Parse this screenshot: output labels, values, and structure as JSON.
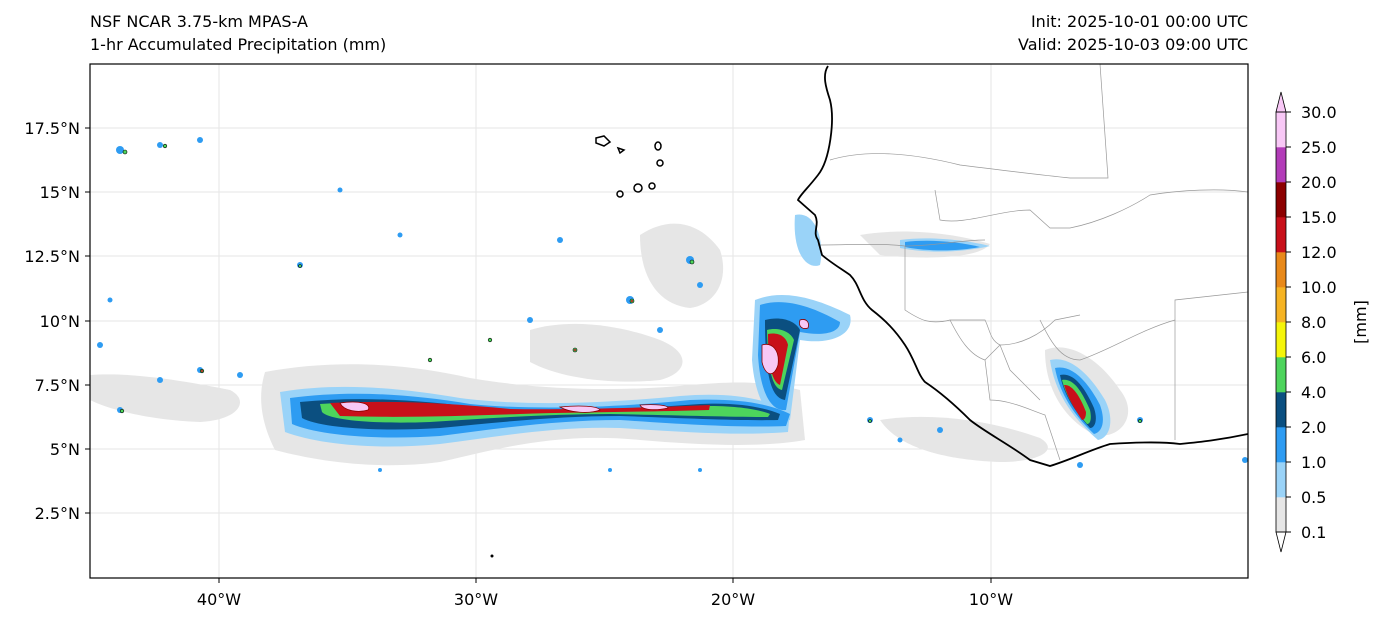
{
  "header": {
    "model": "NSF NCAR 3.75-km MPAS-A",
    "field": "1-hr Accumulated Precipitation (mm)",
    "init": "Init: 2025-10-01 00:00 UTC",
    "valid": "Valid: 2025-10-03 09:00 UTC"
  },
  "axes": {
    "lat_ticks": [
      "17.5°N",
      "15°N",
      "12.5°N",
      "10°N",
      "7.5°N",
      "5°N",
      "2.5°N"
    ],
    "lon_ticks": [
      "40°W",
      "30°W",
      "20°W",
      "10°W"
    ]
  },
  "colorbar": {
    "unit_label": "[mm]",
    "levels": [
      "0.1",
      "0.5",
      "1.0",
      "2.0",
      "4.0",
      "6.0",
      "8.0",
      "10.0",
      "12.0",
      "15.0",
      "20.0",
      "25.0",
      "30.0"
    ],
    "colors": [
      "#e6e6e6",
      "#9ad3f8",
      "#2e9cf2",
      "#0b4f80",
      "#4dd45c",
      "#f5f50a",
      "#f5b323",
      "#e8891a",
      "#c8101a",
      "#8c0000",
      "#b23cb8",
      "#f8c8f6"
    ]
  },
  "map": {
    "domain_lon": [
      -45,
      0
    ],
    "domain_lat": [
      0,
      20
    ],
    "coastline_color": "#000000",
    "border_color": "#999999"
  }
}
